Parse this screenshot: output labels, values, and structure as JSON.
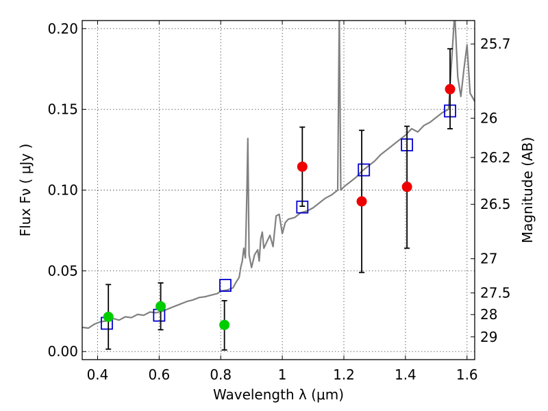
{
  "chart_data": {
    "type": "scatter",
    "xlabel": "Wavelength  λ (μm)",
    "ylabel": "Flux  Fν  ( μJy )",
    "y2label": "Magnitude (AB)",
    "xlim": [
      0.35,
      1.625
    ],
    "ylim": [
      -0.005,
      0.205
    ],
    "xticks": [
      0.4,
      0.6,
      0.8,
      1.0,
      1.2,
      1.4,
      1.6
    ],
    "xtick_labels": [
      "0.4",
      "0.6",
      "0.8",
      "1",
      "1.2",
      "1.4",
      "1.6"
    ],
    "yticks": [
      0.0,
      0.05,
      0.1,
      0.15,
      0.2
    ],
    "ytick_labels": [
      "0.00",
      "0.05",
      "0.10",
      "0.15",
      "0.20"
    ],
    "mag_ticks": [
      {
        "label": "25.7",
        "flux": 0.1905
      },
      {
        "label": "26",
        "flux": 0.1445
      },
      {
        "label": "26.2",
        "flux": 0.1202
      },
      {
        "label": "26.5",
        "flux": 0.0912
      },
      {
        "label": "27",
        "flux": 0.0575
      },
      {
        "label": "27.5",
        "flux": 0.0363
      },
      {
        "label": "28",
        "flux": 0.0229
      },
      {
        "label": "29",
        "flux": 0.0091
      }
    ],
    "grid": true,
    "series": [
      {
        "style": "line",
        "color": "#808080",
        "points": [
          [
            0.35,
            0.015
          ],
          [
            0.37,
            0.0145
          ],
          [
            0.39,
            0.017
          ],
          [
            0.41,
            0.0185
          ],
          [
            0.43,
            0.019
          ],
          [
            0.45,
            0.0205
          ],
          [
            0.47,
            0.0195
          ],
          [
            0.49,
            0.0215
          ],
          [
            0.51,
            0.021
          ],
          [
            0.53,
            0.023
          ],
          [
            0.55,
            0.0225
          ],
          [
            0.57,
            0.0245
          ],
          [
            0.59,
            0.024
          ],
          [
            0.61,
            0.025
          ],
          [
            0.63,
            0.0265
          ],
          [
            0.65,
            0.028
          ],
          [
            0.67,
            0.0295
          ],
          [
            0.69,
            0.031
          ],
          [
            0.71,
            0.032
          ],
          [
            0.73,
            0.0335
          ],
          [
            0.75,
            0.034
          ],
          [
            0.77,
            0.035
          ],
          [
            0.79,
            0.036
          ],
          [
            0.8,
            0.0375
          ],
          [
            0.82,
            0.038
          ],
          [
            0.84,
            0.0395
          ],
          [
            0.85,
            0.043
          ],
          [
            0.86,
            0.046
          ],
          [
            0.865,
            0.052
          ],
          [
            0.87,
            0.056
          ],
          [
            0.875,
            0.064
          ],
          [
            0.88,
            0.058
          ],
          [
            0.885,
            0.098
          ],
          [
            0.888,
            0.132
          ],
          [
            0.892,
            0.06
          ],
          [
            0.9,
            0.052
          ],
          [
            0.91,
            0.06
          ],
          [
            0.92,
            0.063
          ],
          [
            0.925,
            0.056
          ],
          [
            0.93,
            0.07
          ],
          [
            0.935,
            0.074
          ],
          [
            0.94,
            0.064
          ],
          [
            0.95,
            0.068
          ],
          [
            0.96,
            0.072
          ],
          [
            0.97,
            0.065
          ],
          [
            0.98,
            0.084
          ],
          [
            0.99,
            0.085
          ],
          [
            1.0,
            0.073
          ],
          [
            1.01,
            0.08
          ],
          [
            1.02,
            0.082
          ],
          [
            1.04,
            0.083
          ],
          [
            1.06,
            0.086
          ],
          [
            1.08,
            0.087
          ],
          [
            1.1,
            0.089
          ],
          [
            1.12,
            0.092
          ],
          [
            1.14,
            0.095
          ],
          [
            1.16,
            0.097
          ],
          [
            1.18,
            0.1
          ],
          [
            1.185,
            0.21
          ],
          [
            1.19,
            0.1
          ],
          [
            1.2,
            0.102
          ],
          [
            1.22,
            0.105
          ],
          [
            1.24,
            0.108
          ],
          [
            1.26,
            0.112
          ],
          [
            1.28,
            0.115
          ],
          [
            1.3,
            0.118
          ],
          [
            1.32,
            0.122
          ],
          [
            1.34,
            0.125
          ],
          [
            1.36,
            0.128
          ],
          [
            1.38,
            0.131
          ],
          [
            1.4,
            0.134
          ],
          [
            1.42,
            0.138
          ],
          [
            1.44,
            0.136
          ],
          [
            1.46,
            0.14
          ],
          [
            1.48,
            0.142
          ],
          [
            1.5,
            0.145
          ],
          [
            1.52,
            0.148
          ],
          [
            1.54,
            0.15
          ],
          [
            1.55,
            0.18
          ],
          [
            1.56,
            0.21
          ],
          [
            1.57,
            0.17
          ],
          [
            1.58,
            0.158
          ],
          [
            1.59,
            0.175
          ],
          [
            1.6,
            0.19
          ],
          [
            1.61,
            0.16
          ],
          [
            1.625,
            0.155
          ]
        ]
      },
      {
        "style": "open-square",
        "color": "#0000cc",
        "points": [
          [
            0.43,
            0.0175
          ],
          [
            0.6,
            0.0225
          ],
          [
            0.815,
            0.041
          ],
          [
            1.065,
            0.0895
          ],
          [
            1.265,
            0.1125
          ],
          [
            1.405,
            0.128
          ],
          [
            1.545,
            0.149
          ]
        ]
      },
      {
        "style": "filled-circle",
        "color": "#00cc00",
        "points": [
          {
            "x": 0.435,
            "y": 0.0215,
            "err_low": 0.0015,
            "err_high": 0.0415
          },
          {
            "x": 0.605,
            "y": 0.028,
            "err_low": 0.0135,
            "err_high": 0.0425
          },
          {
            "x": 0.812,
            "y": 0.0165,
            "err_low": 0.001,
            "err_high": 0.0315
          }
        ]
      },
      {
        "style": "filled-circle",
        "color": "#ee0000",
        "points": [
          {
            "x": 1.065,
            "y": 0.1145,
            "err_low": 0.09,
            "err_high": 0.139
          },
          {
            "x": 1.258,
            "y": 0.093,
            "err_low": 0.049,
            "err_high": 0.137
          },
          {
            "x": 1.405,
            "y": 0.102,
            "err_low": 0.064,
            "err_high": 0.1395
          },
          {
            "x": 1.545,
            "y": 0.1625,
            "err_low": 0.138,
            "err_high": 0.1875
          }
        ]
      }
    ]
  }
}
